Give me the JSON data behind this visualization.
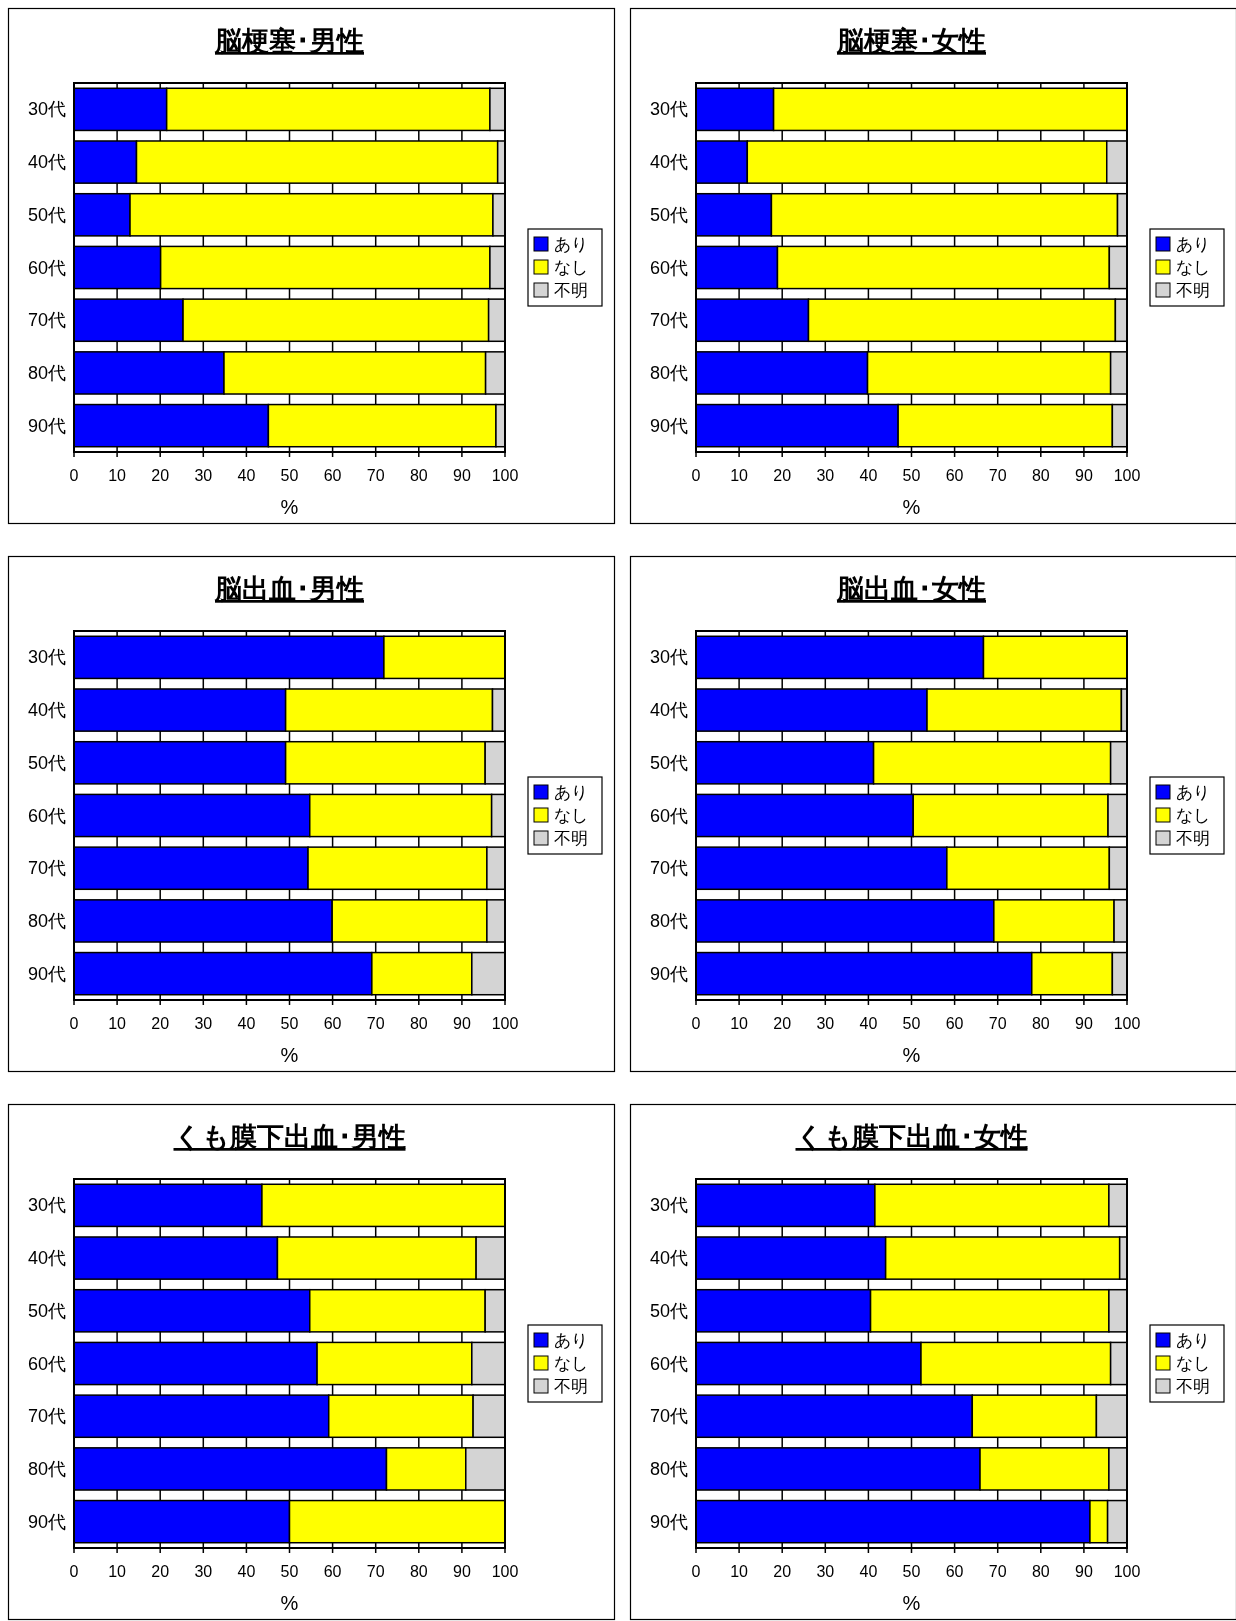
{
  "chart_data": [
    {
      "type": "bar",
      "orientation": "horizontal",
      "stacked": true,
      "title": "脳梗塞･男性",
      "xlabel": "%",
      "categories": [
        "30代",
        "40代",
        "50代",
        "60代",
        "70代",
        "80代",
        "90代"
      ],
      "xlim": [
        0,
        100
      ],
      "xticks": [
        0,
        10,
        20,
        30,
        40,
        50,
        60,
        70,
        80,
        90,
        100
      ],
      "grid": "x",
      "legend": "right",
      "series": [
        {
          "name": "あり",
          "color": "#0000ff",
          "values": [
            21.5,
            14.5,
            13.0,
            20.1,
            25.3,
            34.8,
            45.1
          ]
        },
        {
          "name": "なし",
          "color": "#ffff00",
          "values": [
            75.0,
            83.8,
            84.2,
            76.4,
            70.9,
            60.7,
            52.8
          ]
        },
        {
          "name": "不明",
          "color": "#d4d4d4",
          "values": [
            3.5,
            1.7,
            2.8,
            3.5,
            3.8,
            4.5,
            2.1
          ]
        }
      ]
    },
    {
      "type": "bar",
      "orientation": "horizontal",
      "stacked": true,
      "title": "脳梗塞･女性",
      "xlabel": "%",
      "categories": [
        "30代",
        "40代",
        "50代",
        "60代",
        "70代",
        "80代",
        "90代"
      ],
      "xlim": [
        0,
        100
      ],
      "xticks": [
        0,
        10,
        20,
        30,
        40,
        50,
        60,
        70,
        80,
        90,
        100
      ],
      "grid": "x",
      "legend": "right",
      "series": [
        {
          "name": "あり",
          "color": "#0000ff",
          "values": [
            18.0,
            11.9,
            17.5,
            18.9,
            26.1,
            39.8,
            46.9
          ]
        },
        {
          "name": "なし",
          "color": "#ffff00",
          "values": [
            82.0,
            83.4,
            80.3,
            77.0,
            71.2,
            56.4,
            49.7
          ]
        },
        {
          "name": "不明",
          "color": "#d4d4d4",
          "values": [
            0,
            4.7,
            2.2,
            4.1,
            2.7,
            3.8,
            3.4
          ]
        }
      ]
    },
    {
      "type": "bar",
      "orientation": "horizontal",
      "stacked": true,
      "title": "脳出血･男性",
      "xlabel": "%",
      "categories": [
        "30代",
        "40代",
        "50代",
        "60代",
        "70代",
        "80代",
        "90代"
      ],
      "xlim": [
        0,
        100
      ],
      "xticks": [
        0,
        10,
        20,
        30,
        40,
        50,
        60,
        70,
        80,
        90,
        100
      ],
      "grid": "x",
      "legend": "right",
      "series": [
        {
          "name": "あり",
          "color": "#0000ff",
          "values": [
            71.9,
            49.1,
            49.1,
            54.7,
            54.3,
            59.9,
            69.1
          ]
        },
        {
          "name": "なし",
          "color": "#ffff00",
          "values": [
            28.1,
            48.0,
            46.3,
            42.2,
            41.5,
            35.9,
            23.2
          ]
        },
        {
          "name": "不明",
          "color": "#d4d4d4",
          "values": [
            0,
            2.9,
            4.6,
            3.1,
            4.2,
            4.2,
            7.7
          ]
        }
      ]
    },
    {
      "type": "bar",
      "orientation": "horizontal",
      "stacked": true,
      "title": "脳出血･女性",
      "xlabel": "%",
      "categories": [
        "30代",
        "40代",
        "50代",
        "60代",
        "70代",
        "80代",
        "90代"
      ],
      "xlim": [
        0,
        100
      ],
      "xticks": [
        0,
        10,
        20,
        30,
        40,
        50,
        60,
        70,
        80,
        90,
        100
      ],
      "grid": "x",
      "legend": "right",
      "series": [
        {
          "name": "あり",
          "color": "#0000ff",
          "values": [
            66.7,
            53.6,
            41.2,
            50.4,
            58.2,
            69.1,
            77.9
          ]
        },
        {
          "name": "なし",
          "color": "#ffff00",
          "values": [
            33.3,
            45.1,
            55.0,
            45.2,
            37.7,
            27.9,
            18.7
          ]
        },
        {
          "name": "不明",
          "color": "#d4d4d4",
          "values": [
            0,
            1.3,
            3.8,
            4.4,
            4.1,
            3.0,
            3.4
          ]
        }
      ]
    },
    {
      "type": "bar",
      "orientation": "horizontal",
      "stacked": true,
      "title": "くも膜下出血･男性",
      "xlabel": "%",
      "categories": [
        "30代",
        "40代",
        "50代",
        "60代",
        "70代",
        "80代",
        "90代"
      ],
      "xlim": [
        0,
        100
      ],
      "xticks": [
        0,
        10,
        20,
        30,
        40,
        50,
        60,
        70,
        80,
        90,
        100
      ],
      "grid": "x",
      "legend": "right",
      "series": [
        {
          "name": "あり",
          "color": "#0000ff",
          "values": [
            43.6,
            47.2,
            54.7,
            56.4,
            59.1,
            72.5,
            50.0
          ]
        },
        {
          "name": "なし",
          "color": "#ffff00",
          "values": [
            56.4,
            46.1,
            40.7,
            35.9,
            33.5,
            18.4,
            50.0
          ]
        },
        {
          "name": "不明",
          "color": "#d4d4d4",
          "values": [
            0,
            6.7,
            4.6,
            7.7,
            7.4,
            9.1,
            0
          ]
        }
      ]
    },
    {
      "type": "bar",
      "orientation": "horizontal",
      "stacked": true,
      "title": "くも膜下出血･女性",
      "xlabel": "%",
      "categories": [
        "30代",
        "40代",
        "50代",
        "60代",
        "70代",
        "80代",
        "90代"
      ],
      "xlim": [
        0,
        100
      ],
      "xticks": [
        0,
        10,
        20,
        30,
        40,
        50,
        60,
        70,
        80,
        90,
        100
      ],
      "grid": "x",
      "legend": "right",
      "series": [
        {
          "name": "あり",
          "color": "#0000ff",
          "values": [
            41.5,
            44.0,
            40.5,
            52.2,
            64.1,
            65.9,
            91.4
          ]
        },
        {
          "name": "なし",
          "color": "#ffff00",
          "values": [
            54.3,
            54.3,
            55.3,
            44.0,
            28.8,
            29.9,
            4.1
          ]
        },
        {
          "name": "不明",
          "color": "#d4d4d4",
          "values": [
            4.2,
            1.7,
            4.2,
            3.8,
            7.1,
            4.2,
            4.5
          ]
        }
      ]
    }
  ]
}
